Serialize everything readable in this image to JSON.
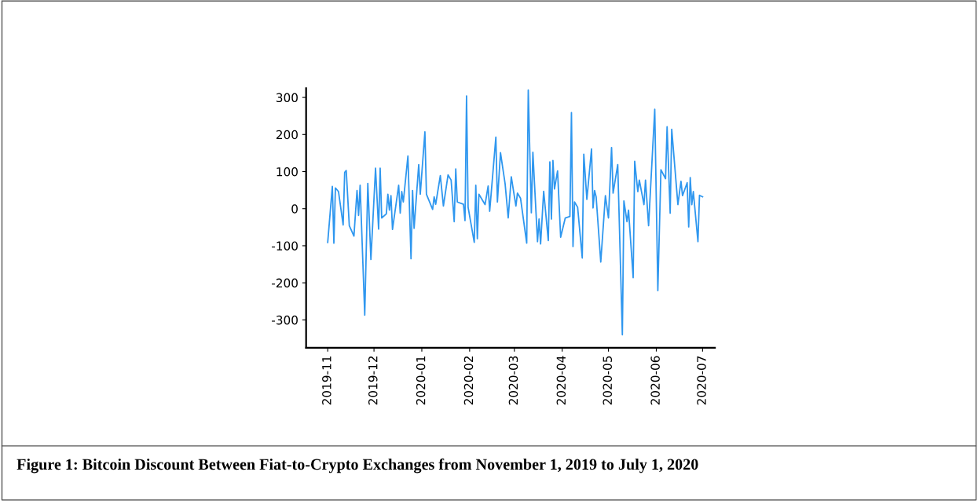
{
  "chart_data": {
    "type": "line",
    "title": "Figure 1: Bitcoin Discount Between Fiat-to-Crypto Exchanges from November 1, 2019 to July 1, 2020",
    "x": [
      "2019-11-01",
      "2019-11-04",
      "2019-11-05",
      "2019-11-06",
      "2019-11-08",
      "2019-11-11",
      "2019-11-12",
      "2019-11-13",
      "2019-11-15",
      "2019-11-18",
      "2019-11-20",
      "2019-11-21",
      "2019-11-22",
      "2019-11-25",
      "2019-11-27",
      "2019-11-29",
      "2019-12-02",
      "2019-12-04",
      "2019-12-05",
      "2019-12-06",
      "2019-12-09",
      "2019-12-10",
      "2019-12-11",
      "2019-12-12",
      "2019-12-13",
      "2019-12-17",
      "2019-12-18",
      "2019-12-19",
      "2019-12-20",
      "2019-12-23",
      "2019-12-25",
      "2019-12-26",
      "2019-12-27",
      "2019-12-30",
      "2019-12-31",
      "2020-01-03",
      "2020-01-04",
      "2020-01-08",
      "2020-01-09",
      "2020-01-10",
      "2020-01-13",
      "2020-01-15",
      "2020-01-18",
      "2020-01-20",
      "2020-01-22",
      "2020-01-23",
      "2020-01-24",
      "2020-01-28",
      "2020-01-29",
      "2020-01-30",
      "2020-01-31",
      "2020-02-04",
      "2020-02-05",
      "2020-02-06",
      "2020-02-07",
      "2020-02-11",
      "2020-02-13",
      "2020-02-14",
      "2020-02-18",
      "2020-02-19",
      "2020-02-21",
      "2020-02-24",
      "2020-02-26",
      "2020-02-28",
      "2020-03-02",
      "2020-03-03",
      "2020-03-05",
      "2020-03-09",
      "2020-03-10",
      "2020-03-12",
      "2020-03-13",
      "2020-03-16",
      "2020-03-17",
      "2020-03-18",
      "2020-03-20",
      "2020-03-23",
      "2020-03-24",
      "2020-03-25",
      "2020-03-26",
      "2020-03-27",
      "2020-03-29",
      "2020-03-31",
      "2020-04-03",
      "2020-04-06",
      "2020-04-07",
      "2020-04-08",
      "2020-04-09",
      "2020-04-11",
      "2020-04-14",
      "2020-04-15",
      "2020-04-17",
      "2020-04-20",
      "2020-04-21",
      "2020-04-22",
      "2020-04-23",
      "2020-04-26",
      "2020-04-29",
      "2020-05-01",
      "2020-05-03",
      "2020-05-04",
      "2020-05-07",
      "2020-05-10",
      "2020-05-11",
      "2020-05-13",
      "2020-05-14",
      "2020-05-17",
      "2020-05-18",
      "2020-05-20",
      "2020-05-21",
      "2020-05-24",
      "2020-05-25",
      "2020-05-27",
      "2020-05-31",
      "2020-06-02",
      "2020-06-04",
      "2020-06-07",
      "2020-06-08",
      "2020-06-10",
      "2020-06-11",
      "2020-06-15",
      "2020-06-17",
      "2020-06-18",
      "2020-06-21",
      "2020-06-22",
      "2020-06-23",
      "2020-06-24",
      "2020-06-25",
      "2020-06-28",
      "2020-06-29",
      "2020-07-01"
    ],
    "series": [
      {
        "color": "#2f97ef",
        "values": [
          -91,
          60,
          -93,
          56,
          46,
          -44,
          98,
          103,
          -46,
          -74,
          49,
          -18,
          63,
          -287,
          68,
          -137,
          109,
          -55,
          109,
          -25,
          -14,
          39,
          -4,
          35,
          -56,
          63,
          -12,
          46,
          18,
          142,
          -135,
          49,
          -53,
          119,
          39,
          207,
          39,
          -2,
          32,
          12,
          89,
          7,
          91,
          77,
          -35,
          107,
          18,
          12,
          -32,
          304,
          4,
          -91,
          63,
          -81,
          39,
          11,
          61,
          -7,
          193,
          18,
          151,
          67,
          -25,
          86,
          7,
          42,
          28,
          -93,
          320,
          -11,
          152,
          -89,
          -28,
          -95,
          47,
          -86,
          126,
          -28,
          130,
          53,
          102,
          -77,
          -25,
          -21,
          259,
          -102,
          18,
          4,
          -133,
          147,
          25,
          161,
          2,
          49,
          32,
          -144,
          35,
          -25,
          165,
          42,
          119,
          -340,
          21,
          -35,
          -4,
          -186,
          128,
          46,
          77,
          11,
          77,
          -46,
          268,
          -221,
          105,
          81,
          221,
          -12,
          214,
          11,
          74,
          35,
          70,
          -49,
          84,
          11,
          46,
          -89,
          36,
          32
        ]
      }
    ],
    "xlim": [
      "2019-10-18",
      "2020-07-09"
    ],
    "xticks": [
      {
        "value": "2019-11-01",
        "label": "2019-11"
      },
      {
        "value": "2019-12-01",
        "label": "2019-12"
      },
      {
        "value": "2020-01-01",
        "label": "2020-01"
      },
      {
        "value": "2020-02-01",
        "label": "2020-02"
      },
      {
        "value": "2020-03-01",
        "label": "2020-03"
      },
      {
        "value": "2020-04-01",
        "label": "2020-04"
      },
      {
        "value": "2020-05-01",
        "label": "2020-05"
      },
      {
        "value": "2020-06-01",
        "label": "2020-06"
      },
      {
        "value": "2020-07-01",
        "label": "2020-07"
      }
    ],
    "ylim": [
      -375,
      325
    ],
    "yticks": [
      -300,
      -200,
      -100,
      0,
      100,
      200,
      300
    ],
    "grid": false,
    "marker": "none",
    "line_style": "solid"
  }
}
